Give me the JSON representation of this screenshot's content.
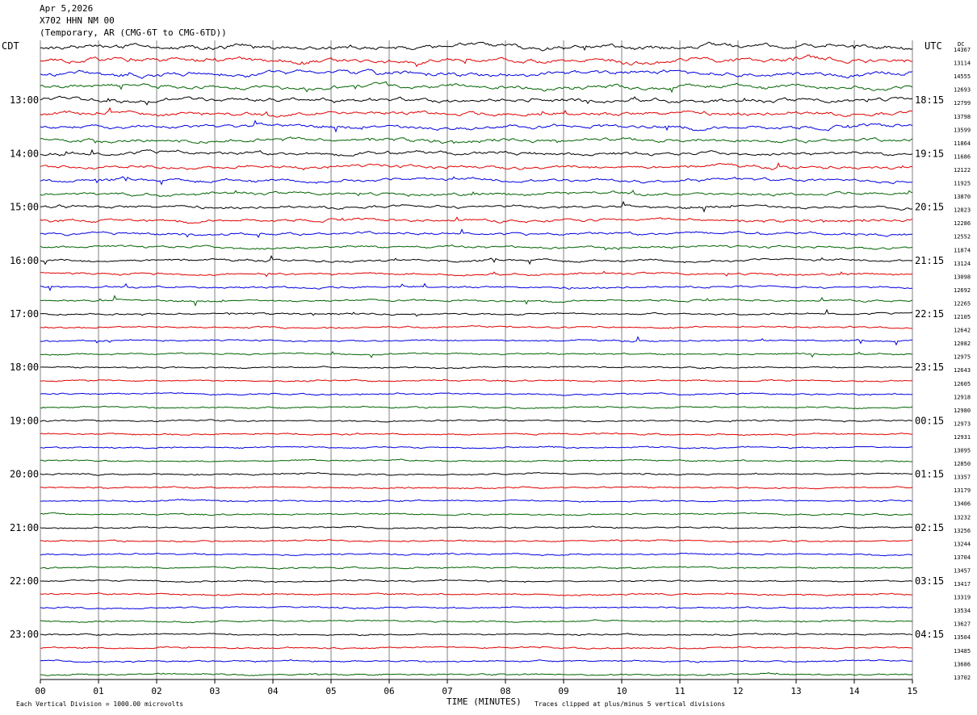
{
  "header": {
    "date": "Apr 5,2026",
    "station": "X702 HHN NM 00",
    "network": "(Temporary, AR (CMG-6T to CMG-6TD))"
  },
  "labels": {
    "left_zone": "CDT",
    "right_zone": "UTC",
    "dc": "DC"
  },
  "footer": {
    "scale": "Each Vertical Division = 1000.00 microvolts",
    "xlabel": "TIME (MINUTES)",
    "clip": "Traces clipped at plus/minus 5 vertical divisions"
  },
  "colors": {
    "cycle": [
      "#000000",
      "#e00000",
      "#0000e0",
      "#006400"
    ],
    "grid": "#808080"
  },
  "chart_data": {
    "type": "line",
    "x_ticks": [
      "00",
      "01",
      "02",
      "03",
      "04",
      "05",
      "06",
      "07",
      "08",
      "09",
      "10",
      "11",
      "12",
      "13",
      "14",
      "15"
    ],
    "xlim": [
      0,
      15
    ],
    "cdt_labels": [
      "13:00",
      "14:00",
      "15:00",
      "16:00",
      "17:00",
      "18:00",
      "19:00",
      "20:00",
      "21:00",
      "22:00",
      "23:00"
    ],
    "utc_labels": [
      "18:15",
      "19:15",
      "20:15",
      "21:15",
      "22:15",
      "23:15",
      "00:15",
      "01:15",
      "02:15",
      "03:15",
      "04:15"
    ],
    "label_every_rows": 4,
    "first_label_row": 4,
    "dc_offsets": [
      "14367",
      "13114",
      "14555",
      "12693",
      "12799",
      "13798",
      "13599",
      "11864",
      "11686",
      "12122",
      "11925",
      "13870",
      "12823",
      "12286",
      "12552",
      "11874",
      "13124",
      "13098",
      "12692",
      "12265",
      "12105",
      "12642",
      "12082",
      "12975",
      "12643",
      "12605",
      "12918",
      "12980",
      "12973",
      "12931",
      "13095",
      "12850",
      "13357",
      "13179",
      "13406",
      "13232",
      "13256",
      "13244",
      "13704",
      "13457",
      "13417",
      "13319",
      "13534",
      "13627",
      "13504",
      "13485",
      "13686",
      "13702"
    ]
  }
}
